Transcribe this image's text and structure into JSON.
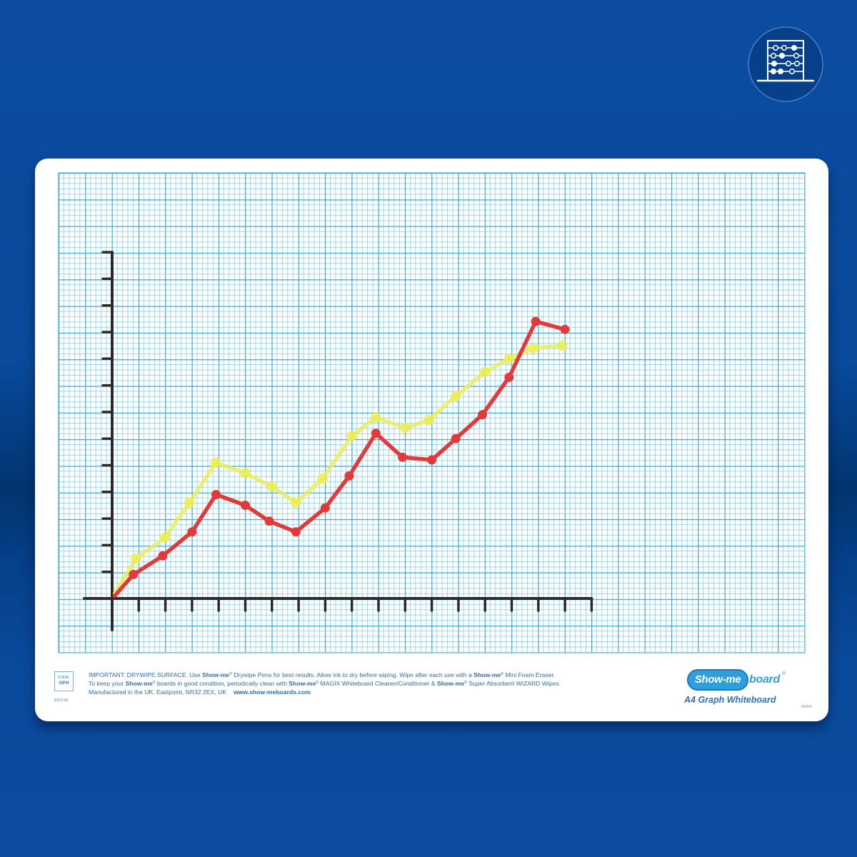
{
  "badge": {
    "icon": "abacus-icon"
  },
  "board": {
    "code_label": "CODE:",
    "code_value": "GPH",
    "part_number": "EP0190",
    "product_name": "A4 Graph Whiteboard",
    "batch_code": "00000"
  },
  "logo": {
    "show_me": "Show-me",
    "board": "board",
    "reg": "®"
  },
  "notice": {
    "brand": "Show-me",
    "reg": "®",
    "line1": [
      "IMPORTANT: DRYWIPE SURFACE. Use ",
      " Drywipe Pens for best results. Allow ink to dry before wiping. Wipe after each use with a ",
      " Mini Foam Eraser."
    ],
    "line2": [
      "To keep your ",
      " boards in good condition, periodically clean with ",
      " MAGIX Whiteboard Cleaner/Conditioner & ",
      " Super Absorbent WIZARD Wipes."
    ],
    "line3": "Manufactured in the UK. Eastpoint, NR32 2EX, UK",
    "website": "www.show-meboards.com"
  },
  "colors": {
    "background": "#0a4b9f",
    "board": "#ffffff",
    "grid": "#3aa7df",
    "axis": "#2a2a2a",
    "brand_blue": "#2f9edc",
    "text_blue": "#2d6db5"
  },
  "chart_data": {
    "type": "line",
    "title": "",
    "xlabel": "",
    "ylabel": "",
    "xlim": [
      0,
      18
    ],
    "ylim": [
      0,
      13
    ],
    "grid": true,
    "series": [
      {
        "color": "#ebee4f",
        "x": [
          0.1,
          0.9,
          2.0,
          2.9,
          3.9,
          5.0,
          6.0,
          6.9,
          7.9,
          9.0,
          9.9,
          11.0,
          11.9,
          12.9,
          14.0,
          14.9,
          15.8,
          16.9
        ],
        "y": [
          0.2,
          1.5,
          2.3,
          3.6,
          5.1,
          4.7,
          4.2,
          3.6,
          4.5,
          6.1,
          6.8,
          6.4,
          6.7,
          7.6,
          8.5,
          9.0,
          9.4,
          9.5
        ]
      },
      {
        "color": "#e03a3a",
        "x": [
          0.1,
          0.8,
          1.9,
          3.0,
          3.9,
          5.0,
          5.9,
          6.9,
          8.0,
          8.9,
          9.9,
          10.9,
          12.0,
          12.9,
          13.9,
          14.9,
          15.9,
          17.0
        ],
        "y": [
          0.1,
          0.9,
          1.6,
          2.5,
          3.9,
          3.5,
          2.9,
          2.5,
          3.4,
          4.6,
          6.2,
          5.3,
          5.2,
          6.0,
          6.9,
          8.3,
          10.4,
          10.1
        ]
      }
    ]
  }
}
